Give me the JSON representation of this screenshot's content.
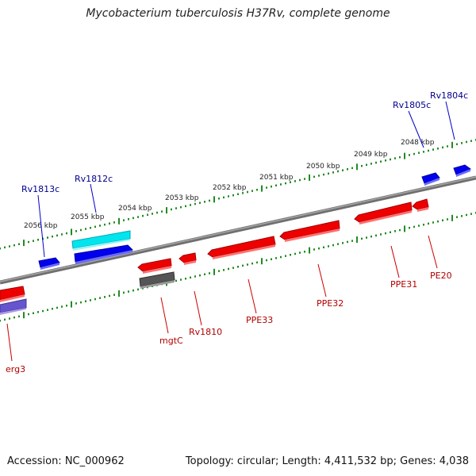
{
  "header": {
    "title": "Mycobacterium tuberculosis H37Rv, complete genome"
  },
  "footer": {
    "accession": "Accession: NC_000962",
    "summary": "Topology: circular; Length: 4,411,532 bp; Genes: 4,038"
  },
  "colors": {
    "forward_cds": "#0000ee",
    "reverse_cds": "#ee0000",
    "highlight": "#00e5ee",
    "pseudo": "#555555",
    "rna": "#6655cc",
    "backbone": "#808080",
    "ruler": "#228b22",
    "forward_label": "#00008b",
    "reverse_label": "#b00000"
  },
  "ruler": {
    "unit": "kbp",
    "ticks_kbp": [
      2056,
      2055,
      2054,
      2053,
      2052,
      2051,
      2050,
      2049,
      2048
    ],
    "tick_labels": [
      "2056 kbp",
      "2055 kbp",
      "2054 kbp",
      "2053 kbp",
      "2052 kbp",
      "2051 kbp",
      "2050 kbp",
      "2049 kbp",
      "2048 kbp"
    ]
  },
  "genes": {
    "forward": [
      {
        "label": "Rv1813c",
        "color_key": "forward_cds"
      },
      {
        "label": "Rv1812c",
        "color_key": "highlight"
      },
      {
        "label": "",
        "color_key": "forward_cds"
      },
      {
        "label": "Rv1805c",
        "color_key": "forward_cds"
      },
      {
        "label": "Rv1804c",
        "color_key": "forward_cds"
      }
    ],
    "reverse": [
      {
        "label": "erg3",
        "color_key": "reverse_cds"
      },
      {
        "label": "",
        "color_key": "rna"
      },
      {
        "label": "mgtC",
        "color_key": "reverse_cds"
      },
      {
        "label": "",
        "color_key": "pseudo"
      },
      {
        "label": "Rv1810",
        "color_key": "reverse_cds"
      },
      {
        "label": "PPE33",
        "color_key": "reverse_cds"
      },
      {
        "label": "PPE32",
        "color_key": "reverse_cds"
      },
      {
        "label": "PPE31",
        "color_key": "reverse_cds"
      },
      {
        "label": "PE20",
        "color_key": "reverse_cds"
      }
    ]
  }
}
